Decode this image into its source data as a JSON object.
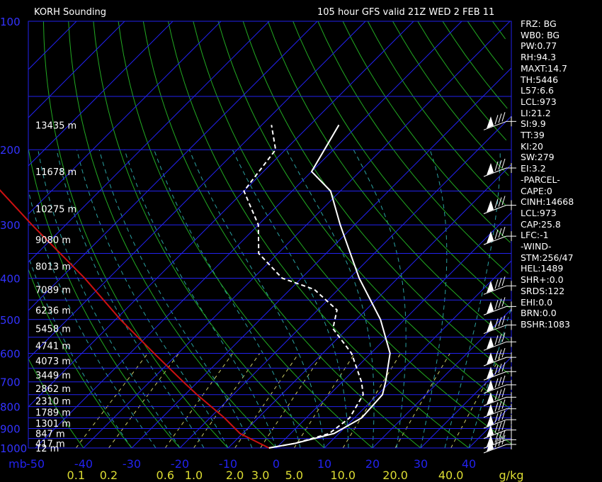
{
  "header": {
    "station": "KORH Sounding",
    "run": "105 hour GFS valid 21Z WED  2 FEB 11"
  },
  "colors": {
    "isobar": "#2222ee",
    "isotherm": "#22aa22",
    "dry_adiabat": "#22aa22",
    "moist_adiabat": "#2aa0a0",
    "mixing_ratio": "#cccc66",
    "parcel": "#cc1111",
    "temperature": "#ffffff",
    "dewpoint": "#ffffff",
    "pressure_label": "#3333ff",
    "height_label": "#ffffff",
    "temp_label": "#2222ee",
    "mixing_label": "#dddd33"
  },
  "indices": [
    "FRZ: BG",
    "WB0: BG",
    "PW:0.77",
    "RH:94.3",
    "MAXT:14.7",
    "TH:5446",
    "L57:6.6",
    "LCL:973",
    "LI:21.2",
    "SI:9.9",
    "TT:39",
    "KI:20",
    "SW:279",
    "EI:3.2",
    "-PARCEL-",
    "CAPE:0",
    "CINH:14668",
    "LCL:973",
    "CAP:25.8",
    "LFC:-1",
    "-WIND-",
    "STM:256/47",
    "HEL:1489",
    "SHR+:0.0",
    "SRDS:122",
    "EHI:0.0",
    "BRN:0.0",
    "BSHR:1083"
  ],
  "chart_data": {
    "type": "skew-t",
    "pressure_unit_label": "mb",
    "mixing_ratio_unit_label": "g/kg",
    "pressure_range": [
      1000,
      100
    ],
    "temperature_range": [
      -50,
      50
    ],
    "isobars": [
      1000,
      900,
      800,
      700,
      600,
      500,
      400,
      300,
      200,
      100
    ],
    "pressure_labels": [
      "1000",
      "900",
      "800",
      "700",
      "600",
      "500",
      "400",
      "300",
      "200",
      "100"
    ],
    "temperature_ticks": [
      -50,
      -40,
      -30,
      -20,
      -10,
      0,
      10,
      20,
      30,
      40
    ],
    "temperature_tick_labels": [
      "-50",
      "-40",
      "-30",
      "-20",
      "-10",
      "0",
      "10",
      "20",
      "30",
      "40"
    ],
    "mixing_ratios": [
      0.1,
      0.2,
      0.6,
      1.0,
      2.0,
      3.0,
      5.0,
      10.0,
      20.0,
      40.0
    ],
    "mixing_ratio_labels": [
      "0.1",
      "0.2",
      "0.6",
      "1.0",
      "2.0",
      "3.0",
      "5.0",
      "10.0",
      "20.0",
      "40.0"
    ],
    "heights": [
      {
        "p": 1000,
        "label": "12 m"
      },
      {
        "p": 975,
        "label": "417 m"
      },
      {
        "p": 925,
        "label": "847 m"
      },
      {
        "p": 875,
        "label": "1301 m"
      },
      {
        "p": 825,
        "label": "1789 m"
      },
      {
        "p": 775,
        "label": "2310 m"
      },
      {
        "p": 725,
        "label": "2862 m"
      },
      {
        "p": 675,
        "label": "3449 m"
      },
      {
        "p": 625,
        "label": "4073 m"
      },
      {
        "p": 575,
        "label": "4741 m"
      },
      {
        "p": 525,
        "label": "5458 m"
      },
      {
        "p": 475,
        "label": "6236 m"
      },
      {
        "p": 425,
        "label": "7089 m"
      },
      {
        "p": 375,
        "label": "8013 m"
      },
      {
        "p": 325,
        "label": "9080 m"
      },
      {
        "p": 275,
        "label": "10275 m"
      },
      {
        "p": 225,
        "label": "11678 m"
      },
      {
        "p": 175,
        "label": "13435 m"
      }
    ],
    "temperature_profile": [
      [
        1000,
        -1.5
      ],
      [
        975,
        3
      ],
      [
        925,
        9
      ],
      [
        850,
        11.5
      ],
      [
        750,
        11
      ],
      [
        700,
        9
      ],
      [
        600,
        4
      ],
      [
        500,
        -5
      ],
      [
        400,
        -18
      ],
      [
        300,
        -33
      ],
      [
        250,
        -42
      ],
      [
        225,
        -50
      ],
      [
        175,
        -54
      ]
    ],
    "dewpoint_profile": [
      [
        1000,
        -1.5
      ],
      [
        975,
        3
      ],
      [
        925,
        8
      ],
      [
        850,
        9
      ],
      [
        750,
        7
      ],
      [
        700,
        4
      ],
      [
        600,
        -4
      ],
      [
        525,
        -13
      ],
      [
        475,
        -16
      ],
      [
        425,
        -25
      ],
      [
        400,
        -34
      ],
      [
        350,
        -44
      ],
      [
        300,
        -50
      ],
      [
        250,
        -60
      ],
      [
        200,
        -62
      ],
      [
        175,
        -68
      ]
    ],
    "parcel_profile": [
      [
        1000,
        -1.5
      ],
      [
        925,
        -10.5
      ],
      [
        850,
        -17
      ],
      [
        750,
        -27.5
      ],
      [
        700,
        -33
      ],
      [
        600,
        -45
      ],
      [
        500,
        -59
      ],
      [
        400,
        -75
      ],
      [
        300,
        -97
      ],
      [
        200,
        -127
      ],
      [
        150,
        -147
      ],
      [
        115,
        -165
      ]
    ],
    "wind_levels": [
      1000,
      975,
      925,
      875,
      825,
      775,
      725,
      675,
      625,
      575,
      525,
      475,
      425,
      325,
      275,
      225,
      175
    ]
  }
}
